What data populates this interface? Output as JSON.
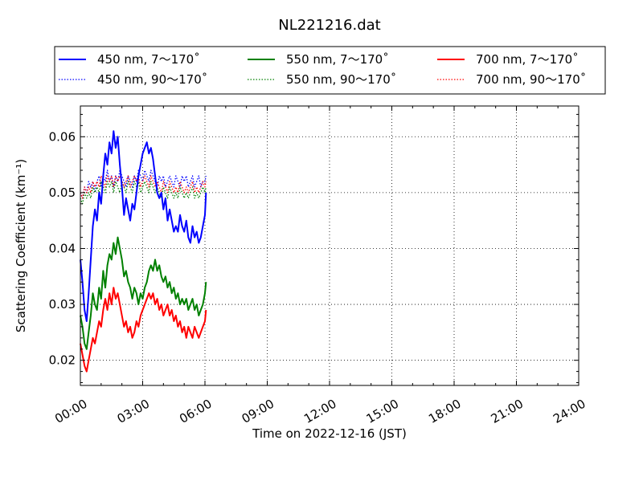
{
  "chart_data": {
    "type": "line",
    "title": "NL221216.dat",
    "xlabel": "Time on 2022-12-16 (JST)",
    "ylabel": "Scattering Coefficient (km⁻¹)",
    "xlim": [
      0,
      24
    ],
    "ylim": [
      0.0155,
      0.0655
    ],
    "x_ticks": [
      0,
      3,
      6,
      9,
      12,
      15,
      18,
      21,
      24
    ],
    "x_tick_labels": [
      "00:00",
      "03:00",
      "06:00",
      "09:00",
      "12:00",
      "15:00",
      "18:00",
      "21:00",
      "24:00"
    ],
    "y_ticks": [
      0.02,
      0.03,
      0.04,
      0.05,
      0.06
    ],
    "y_tick_labels": [
      "0.02",
      "0.03",
      "0.04",
      "0.05",
      "0.06"
    ],
    "grid": true,
    "legend_position": "top (above plot), 3 columns",
    "x": [
      0.0,
      0.1,
      0.2,
      0.3,
      0.4,
      0.5,
      0.6,
      0.7,
      0.8,
      0.9,
      1.0,
      1.1,
      1.2,
      1.3,
      1.4,
      1.5,
      1.6,
      1.7,
      1.8,
      1.9,
      2.0,
      2.1,
      2.2,
      2.3,
      2.4,
      2.5,
      2.6,
      2.7,
      2.8,
      2.9,
      3.0,
      3.1,
      3.2,
      3.3,
      3.4,
      3.5,
      3.6,
      3.7,
      3.8,
      3.9,
      4.0,
      4.1,
      4.2,
      4.3,
      4.4,
      4.5,
      4.6,
      4.7,
      4.8,
      4.9,
      5.0,
      5.1,
      5.2,
      5.3,
      5.4,
      5.5,
      5.6,
      5.7,
      5.8,
      5.9,
      6.0,
      6.05
    ],
    "series": [
      {
        "name": "450 nm, 7～170˚",
        "color": "#0000ff",
        "style": "solid",
        "values": [
          0.038,
          0.034,
          0.029,
          0.027,
          0.032,
          0.038,
          0.044,
          0.047,
          0.045,
          0.05,
          0.048,
          0.053,
          0.057,
          0.055,
          0.059,
          0.057,
          0.061,
          0.058,
          0.06,
          0.055,
          0.051,
          0.046,
          0.049,
          0.047,
          0.045,
          0.048,
          0.047,
          0.05,
          0.053,
          0.055,
          0.057,
          0.058,
          0.059,
          0.057,
          0.058,
          0.056,
          0.053,
          0.05,
          0.049,
          0.05,
          0.047,
          0.049,
          0.045,
          0.047,
          0.045,
          0.043,
          0.044,
          0.043,
          0.046,
          0.044,
          0.043,
          0.045,
          0.042,
          0.041,
          0.044,
          0.042,
          0.043,
          0.041,
          0.042,
          0.044,
          0.046,
          0.05
        ]
      },
      {
        "name": "450 nm, 90～170˚",
        "color": "#0000ff",
        "style": "dotted",
        "values": [
          0.05,
          0.049,
          0.051,
          0.05,
          0.052,
          0.051,
          0.052,
          0.05,
          0.052,
          0.053,
          0.051,
          0.053,
          0.052,
          0.054,
          0.052,
          0.053,
          0.051,
          0.053,
          0.052,
          0.054,
          0.053,
          0.052,
          0.051,
          0.053,
          0.052,
          0.051,
          0.053,
          0.052,
          0.054,
          0.053,
          0.052,
          0.054,
          0.053,
          0.052,
          0.054,
          0.053,
          0.052,
          0.051,
          0.053,
          0.052,
          0.053,
          0.051,
          0.052,
          0.053,
          0.052,
          0.051,
          0.053,
          0.052,
          0.051,
          0.053,
          0.052,
          0.053,
          0.051,
          0.052,
          0.053,
          0.051,
          0.052,
          0.053,
          0.051,
          0.052,
          0.052,
          0.053
        ]
      },
      {
        "name": "550 nm, 7～170˚",
        "color": "#008000",
        "style": "solid",
        "values": [
          0.028,
          0.026,
          0.023,
          0.022,
          0.025,
          0.028,
          0.032,
          0.03,
          0.029,
          0.033,
          0.031,
          0.036,
          0.033,
          0.037,
          0.039,
          0.038,
          0.041,
          0.039,
          0.042,
          0.04,
          0.038,
          0.035,
          0.036,
          0.034,
          0.033,
          0.031,
          0.033,
          0.032,
          0.03,
          0.032,
          0.031,
          0.033,
          0.034,
          0.036,
          0.037,
          0.036,
          0.038,
          0.036,
          0.037,
          0.035,
          0.034,
          0.035,
          0.033,
          0.034,
          0.032,
          0.033,
          0.031,
          0.032,
          0.03,
          0.031,
          0.03,
          0.031,
          0.029,
          0.03,
          0.031,
          0.029,
          0.03,
          0.028,
          0.029,
          0.03,
          0.032,
          0.034
        ]
      },
      {
        "name": "550 nm, 90～170˚",
        "color": "#008000",
        "style": "dotted",
        "values": [
          0.049,
          0.048,
          0.05,
          0.049,
          0.05,
          0.049,
          0.051,
          0.05,
          0.051,
          0.05,
          0.052,
          0.051,
          0.05,
          0.052,
          0.051,
          0.052,
          0.05,
          0.052,
          0.051,
          0.05,
          0.052,
          0.051,
          0.05,
          0.052,
          0.051,
          0.05,
          0.052,
          0.051,
          0.052,
          0.05,
          0.051,
          0.052,
          0.051,
          0.05,
          0.052,
          0.051,
          0.05,
          0.051,
          0.05,
          0.049,
          0.051,
          0.05,
          0.049,
          0.051,
          0.05,
          0.049,
          0.05,
          0.049,
          0.051,
          0.05,
          0.049,
          0.05,
          0.049,
          0.05,
          0.051,
          0.049,
          0.05,
          0.049,
          0.05,
          0.051,
          0.05,
          0.051
        ]
      },
      {
        "name": "700 nm, 7～170˚",
        "color": "#ff0000",
        "style": "solid",
        "values": [
          0.023,
          0.021,
          0.019,
          0.018,
          0.02,
          0.022,
          0.024,
          0.023,
          0.025,
          0.027,
          0.026,
          0.029,
          0.031,
          0.029,
          0.032,
          0.03,
          0.033,
          0.031,
          0.032,
          0.03,
          0.028,
          0.026,
          0.027,
          0.025,
          0.026,
          0.024,
          0.025,
          0.027,
          0.026,
          0.028,
          0.029,
          0.03,
          0.031,
          0.032,
          0.031,
          0.032,
          0.03,
          0.031,
          0.029,
          0.03,
          0.028,
          0.029,
          0.03,
          0.028,
          0.029,
          0.027,
          0.028,
          0.026,
          0.027,
          0.025,
          0.026,
          0.024,
          0.026,
          0.025,
          0.024,
          0.026,
          0.025,
          0.024,
          0.025,
          0.026,
          0.027,
          0.029
        ]
      },
      {
        "name": "700 nm, 90～170˚",
        "color": "#ff0000",
        "style": "dotted",
        "values": [
          0.05,
          0.049,
          0.051,
          0.05,
          0.051,
          0.05,
          0.052,
          0.051,
          0.052,
          0.051,
          0.053,
          0.052,
          0.051,
          0.053,
          0.052,
          0.053,
          0.051,
          0.053,
          0.052,
          0.053,
          0.052,
          0.051,
          0.052,
          0.053,
          0.051,
          0.052,
          0.053,
          0.052,
          0.053,
          0.051,
          0.052,
          0.053,
          0.052,
          0.051,
          0.053,
          0.052,
          0.051,
          0.052,
          0.051,
          0.05,
          0.052,
          0.051,
          0.05,
          0.052,
          0.051,
          0.05,
          0.051,
          0.05,
          0.052,
          0.051,
          0.05,
          0.051,
          0.05,
          0.051,
          0.052,
          0.05,
          0.051,
          0.05,
          0.051,
          0.052,
          0.051,
          0.052
        ]
      }
    ]
  }
}
